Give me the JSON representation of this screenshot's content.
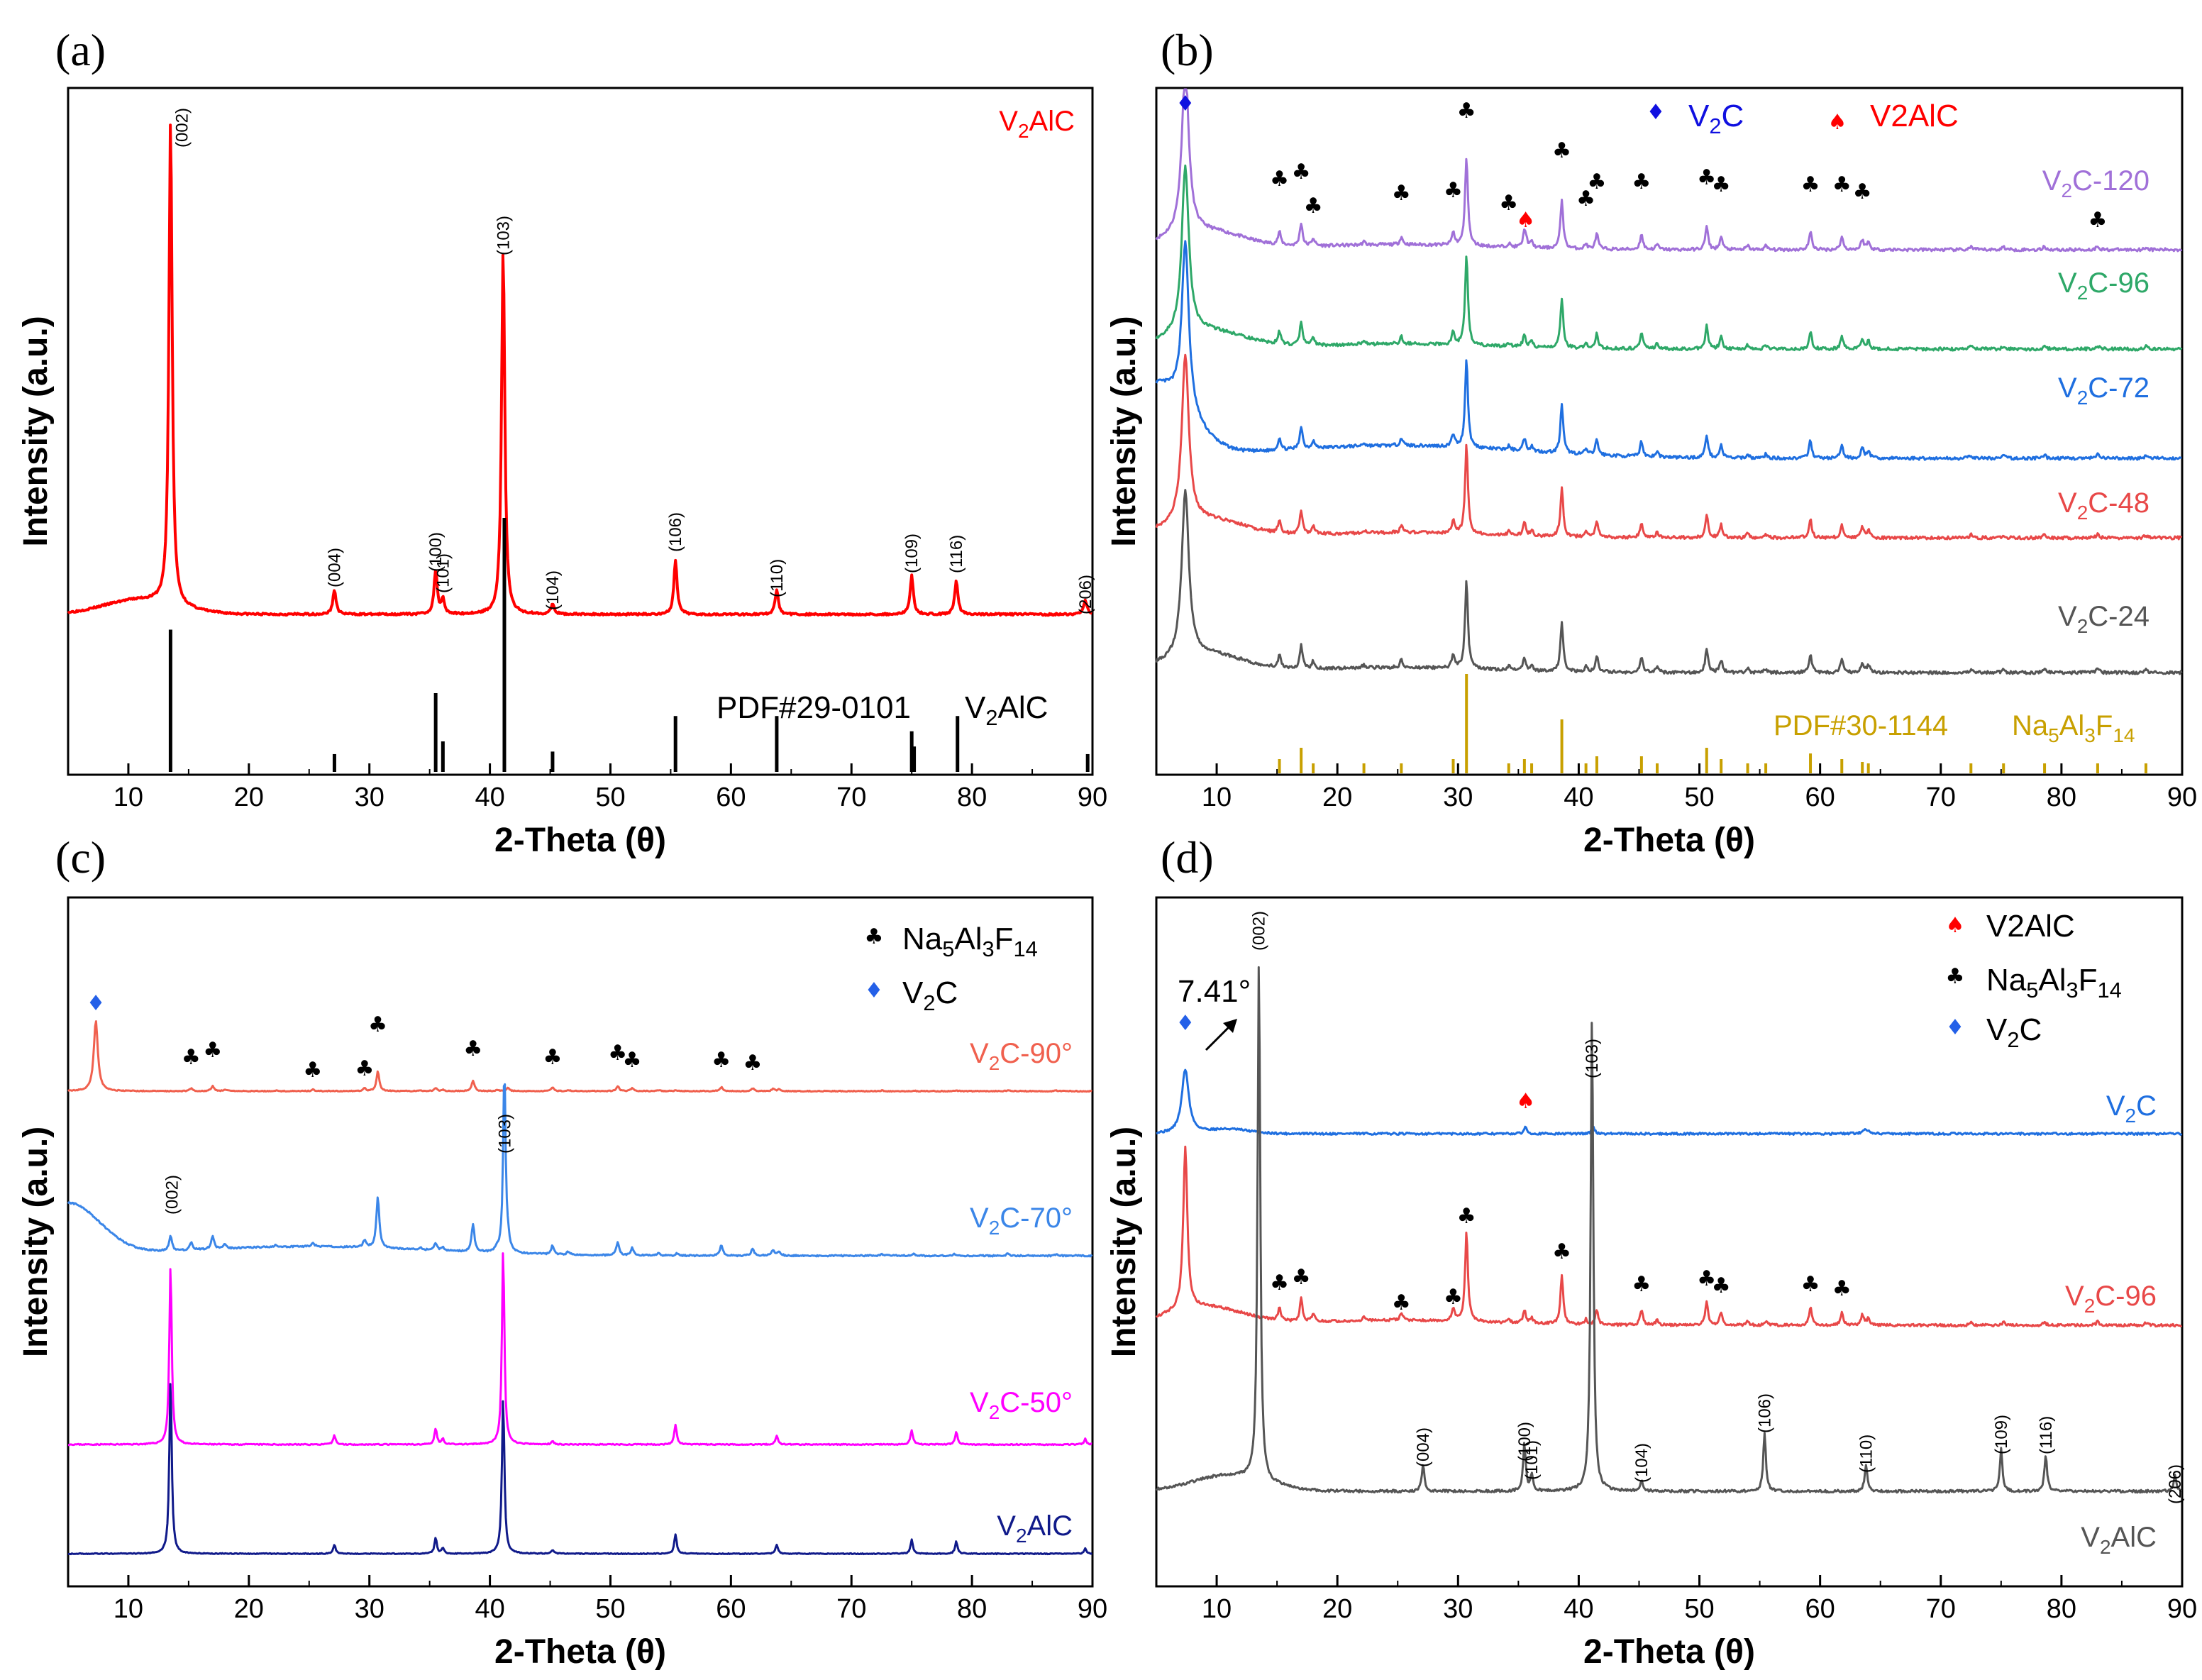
{
  "colors": {
    "v2alc_red": "#ff0000",
    "black": "#000000",
    "purple": "#a070d8",
    "green": "#2ea868",
    "blue": "#1f6fe0",
    "red": "#e84848",
    "gray": "#555555",
    "gold": "#c8a000",
    "salmon": "#f0604e",
    "sky": "#3b86e8",
    "magenta": "#ff00ff",
    "navy": "#101a8a",
    "marker_blue": "#2460e8"
  },
  "icons": {
    "club": "♣",
    "diamond": "♦",
    "spade": "♠"
  },
  "chart_data": [
    {
      "id": "a",
      "panel_label": "(a)",
      "type": "line",
      "xlabel": "2-Theta (θ)",
      "ylabel": "Intensity (a.u.)",
      "xlim": [
        5,
        90
      ],
      "xticks": [
        10,
        20,
        30,
        40,
        50,
        60,
        70,
        80,
        90
      ],
      "series": [
        {
          "name": "V2AlC",
          "label_main": "V",
          "label_sub": "2",
          "label_tail": "AlC",
          "color": "#ff0000",
          "baseline": 0.0,
          "background": "bump",
          "peaks": [
            [
              13.5,
              1.0
            ],
            [
              27.1,
              0.05
            ],
            [
              35.5,
              0.09
            ],
            [
              36.1,
              0.03
            ],
            [
              41.1,
              0.75
            ],
            [
              45.2,
              0.02
            ],
            [
              55.4,
              0.11
            ],
            [
              63.8,
              0.05
            ],
            [
              75.0,
              0.08
            ],
            [
              78.7,
              0.07
            ],
            [
              89.4,
              0.03
            ]
          ]
        }
      ],
      "reference": {
        "label": "PDF#29-0101",
        "phase_main": "V",
        "phase_sub": "2",
        "phase_tail": "AlC",
        "color": "#000000",
        "sticks": [
          [
            13.5,
            0.56
          ],
          [
            27.1,
            0.07
          ],
          [
            35.5,
            0.31
          ],
          [
            36.1,
            0.12
          ],
          [
            41.2,
            1.0
          ],
          [
            45.2,
            0.08
          ],
          [
            55.4,
            0.22
          ],
          [
            63.8,
            0.22
          ],
          [
            75.0,
            0.16
          ],
          [
            75.2,
            0.1
          ],
          [
            78.8,
            0.22
          ],
          [
            89.6,
            0.07
          ]
        ]
      },
      "annotations": [
        "(002)",
        "(004)",
        "(100)",
        "(101)",
        "(103)",
        "(104)",
        "(106)",
        "(110)",
        "(109)",
        "(116)",
        "(206)"
      ],
      "annotation_x": [
        13.5,
        27.1,
        35.5,
        36.1,
        41.1,
        45.2,
        55.4,
        63.8,
        75.0,
        78.7,
        89.4
      ]
    },
    {
      "id": "b",
      "panel_label": "(b)",
      "type": "line",
      "xlabel": "2-Theta (θ)",
      "ylabel": "Intensity (a.u.)",
      "xlim": [
        5,
        90
      ],
      "xticks": [
        10,
        20,
        30,
        40,
        50,
        60,
        70,
        80,
        90
      ],
      "legend": [
        {
          "symbol": "diamond",
          "main": "V",
          "sub": "2",
          "tail": "C",
          "color": "#1010e0"
        },
        {
          "symbol": "spade",
          "main": "V2AlC",
          "sub": "",
          "tail": "",
          "color": "#ff0000"
        }
      ],
      "series": [
        {
          "name": "V2C-120",
          "label_main": "V",
          "label_sub": "2",
          "label_tail": "C-120",
          "color": "#a070d8"
        },
        {
          "name": "V2C-96",
          "label_main": "V",
          "label_sub": "2",
          "label_tail": "C-96",
          "color": "#2ea868"
        },
        {
          "name": "V2C-72",
          "label_main": "V",
          "label_sub": "2",
          "label_tail": "C-72",
          "color": "#1f6fe0"
        },
        {
          "name": "V2C-48",
          "label_main": "V",
          "label_sub": "2",
          "label_tail": "C-48",
          "color": "#e84848"
        },
        {
          "name": "V2C-24",
          "label_main": "V",
          "label_sub": "2",
          "label_tail": "C-24",
          "color": "#555555"
        }
      ],
      "reference": {
        "label": "PDF#30-1144",
        "phase_main": "Na",
        "phase_sub": "5",
        "phase_tail": "Al",
        "phase_sub2": "3",
        "phase_tail2": "F",
        "phase_sub3": "14",
        "color": "#c8a000"
      },
      "club_x": [
        15.2,
        17.0,
        18.0,
        25.3,
        29.6,
        30.7,
        34.2,
        38.6,
        40.6,
        41.5,
        45.2,
        50.6,
        51.8,
        59.2,
        61.8,
        63.5,
        83.0
      ]
    },
    {
      "id": "c",
      "panel_label": "(c)",
      "type": "line",
      "xlabel": "2-Theta (θ)",
      "ylabel": "Intensity (a.u.)",
      "xlim": [
        5,
        90
      ],
      "xticks": [
        10,
        20,
        30,
        40,
        50,
        60,
        70,
        80,
        90
      ],
      "legend": [
        {
          "symbol": "club",
          "main": "Na",
          "sub": "5",
          "tail": "Al",
          "sub2": "3",
          "tail2": "F",
          "sub3": "14",
          "color": "#000000"
        },
        {
          "symbol": "diamond",
          "main": "V",
          "sub": "2",
          "tail": "C",
          "color": "#2460e8"
        }
      ],
      "series": [
        {
          "name": "V2C-90°",
          "label_main": "V",
          "label_sub": "2",
          "label_tail": "C-90°",
          "color": "#f0604e"
        },
        {
          "name": "V2C-70°",
          "label_main": "V",
          "label_sub": "2",
          "label_tail": "C-70°",
          "color": "#3b86e8"
        },
        {
          "name": "V2C-50°",
          "label_main": "V",
          "label_sub": "2",
          "label_tail": "C-50°",
          "color": "#ff00ff"
        },
        {
          "name": "V2AlC",
          "label_main": "V",
          "label_sub": "2",
          "label_tail": "AlC",
          "color": "#101a8a"
        }
      ],
      "annotations": [
        "(002)",
        "(103)"
      ],
      "annotation_x": [
        13.5,
        41.1
      ],
      "club_x": [
        15.2,
        17.0,
        25.3,
        29.6,
        30.7,
        38.6,
        45.2,
        50.6,
        51.8,
        59.2,
        61.8
      ]
    },
    {
      "id": "d",
      "panel_label": "(d)",
      "type": "line",
      "xlabel": "2-Theta (θ)",
      "ylabel": "Intensity (a.u.)",
      "xlim": [
        5,
        90
      ],
      "xticks": [
        10,
        20,
        30,
        40,
        50,
        60,
        70,
        80,
        90
      ],
      "legend": [
        {
          "symbol": "spade",
          "main": "V2AlC",
          "sub": "",
          "tail": "",
          "color": "#ff0000"
        },
        {
          "symbol": "club",
          "main": "Na",
          "sub": "5",
          "tail": "Al",
          "sub2": "3",
          "tail2": "F",
          "sub3": "14",
          "color": "#000000"
        },
        {
          "symbol": "diamond",
          "main": "V",
          "sub": "2",
          "tail": "C",
          "color": "#2460e8"
        }
      ],
      "series": [
        {
          "name": "V2C",
          "label_main": "V",
          "label_sub": "2",
          "label_tail": "C",
          "color": "#1f6fe0"
        },
        {
          "name": "V2C-96",
          "label_main": "V",
          "label_sub": "2",
          "label_tail": "C-96",
          "color": "#e84848"
        },
        {
          "name": "V2AlC",
          "label_main": "V",
          "label_sub": "2",
          "label_tail": "AlC",
          "color": "#555555"
        }
      ],
      "peak_callout": "7.41°",
      "annotations": [
        "(002)",
        "(004)",
        "(100)",
        "(101)",
        "(103)",
        "(104)",
        "(106)",
        "(110)",
        "(109)",
        "(116)",
        "(206)"
      ],
      "annotation_x": [
        13.5,
        27.1,
        35.5,
        36.1,
        41.1,
        45.2,
        55.4,
        63.8,
        75.0,
        78.7,
        89.4
      ],
      "club_x": [
        15.2,
        17.0,
        25.3,
        29.6,
        30.7,
        38.6,
        45.2,
        50.6,
        51.8,
        59.2,
        61.8
      ]
    }
  ]
}
